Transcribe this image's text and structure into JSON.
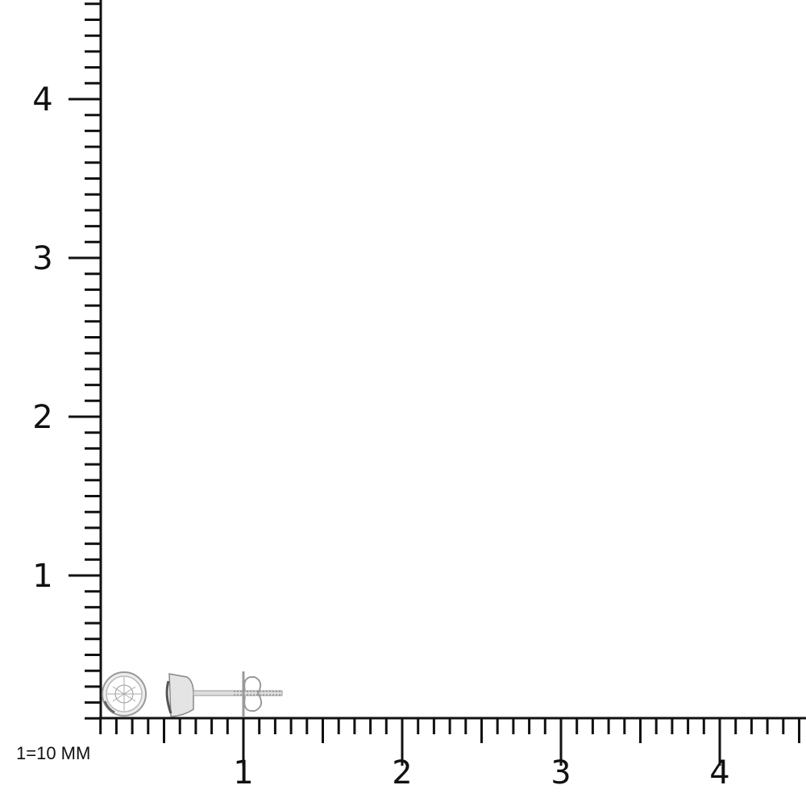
{
  "scale_note": "1=10 MM",
  "ruler": {
    "x_labels": [
      "1",
      "2",
      "3",
      "4"
    ],
    "y_labels": [
      "1",
      "2",
      "3",
      "4"
    ],
    "minor_divisions_per_unit": 10,
    "color": "#111111"
  },
  "product": {
    "type": "bezel-set round stud earring",
    "views": [
      "front",
      "side"
    ],
    "metal_color": "#d9d9d9"
  }
}
